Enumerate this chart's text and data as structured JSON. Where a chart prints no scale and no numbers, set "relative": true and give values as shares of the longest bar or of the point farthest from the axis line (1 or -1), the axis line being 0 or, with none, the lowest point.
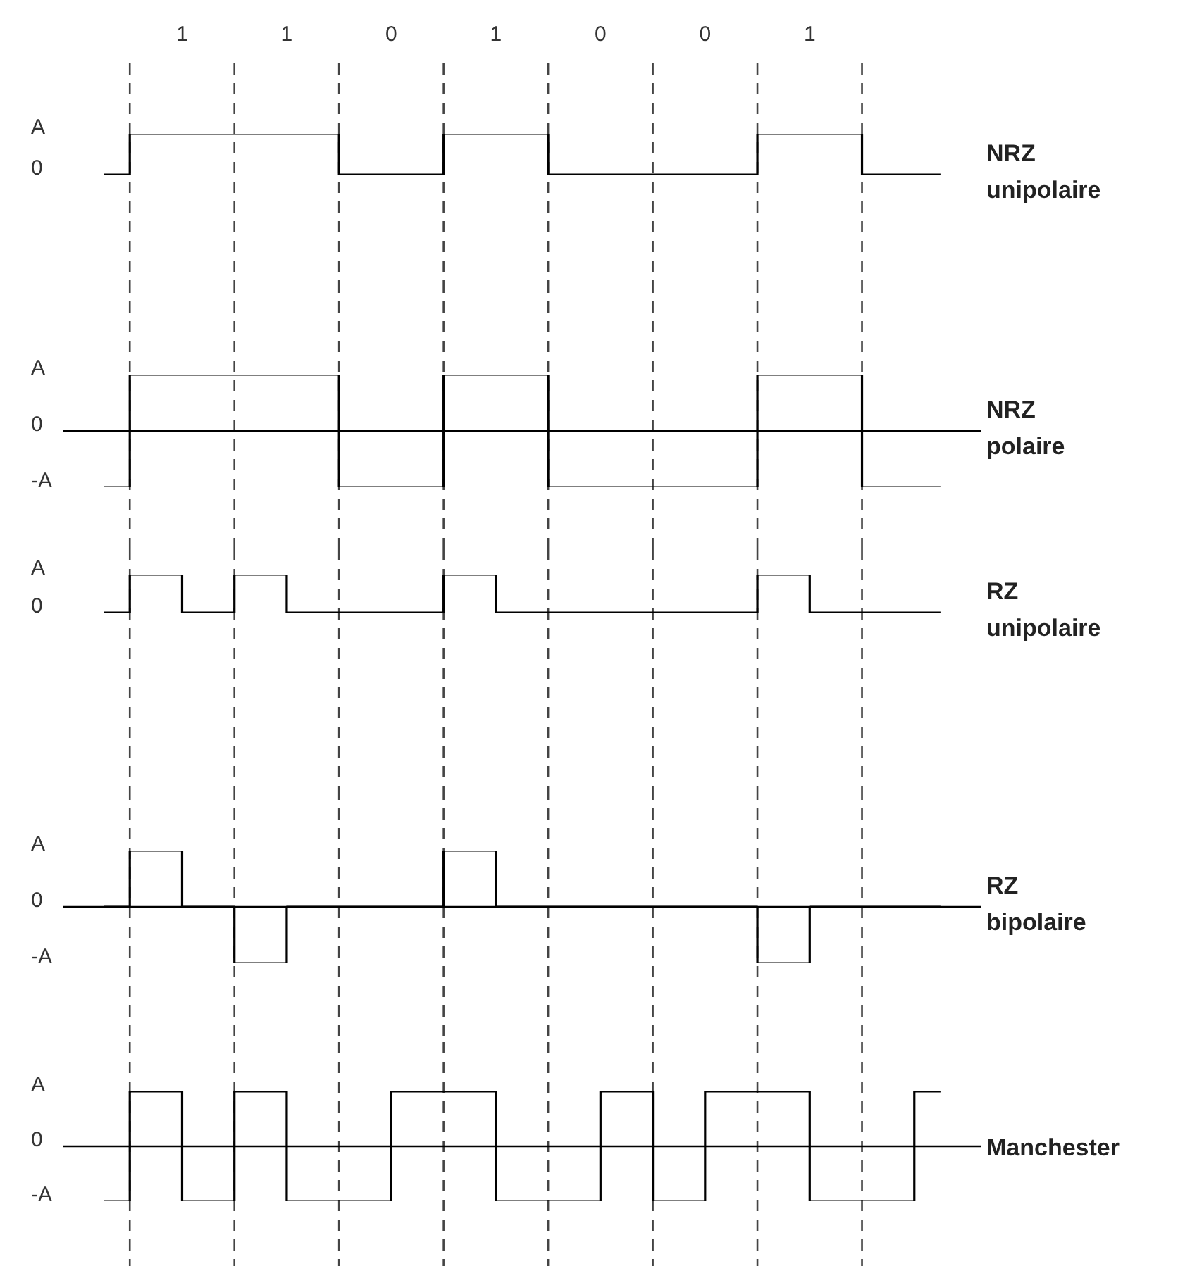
{
  "chart_data": [
    {
      "type": "step",
      "relative": true,
      "categories": [
        null,
        null,
        null,
        null,
        null,
        null,
        null,
        null,
        null,
        null,
        null,
        null,
        null,
        null,
        null,
        null,
        null
      ],
      "annotations": [
        "1",
        "1",
        "0",
        "1",
        "0",
        "0",
        "1",
        "A",
        "0"
      ],
      "grid": "x",
      "line_style": "solid",
      "series": [
        {
          "name": "NRZ unipolaire",
          "color": "#000000",
          "values": [
            0,
            1,
            1,
            1,
            1,
            0,
            0,
            1,
            1,
            0,
            0,
            0,
            0,
            1,
            1,
            0,
            0
          ]
        }
      ]
    },
    {
      "type": "step",
      "relative": true,
      "categories": [
        null,
        null,
        null,
        null,
        null,
        null,
        null,
        null,
        null,
        null,
        null,
        null,
        null,
        null,
        null,
        null,
        null
      ],
      "annotations": [
        "A",
        "0",
        "-A"
      ],
      "grid": "x",
      "line_style": "solid",
      "series": [
        {
          "name": "NRZ polaire",
          "color": "#000000",
          "values": [
            -1,
            1,
            1,
            1,
            1,
            -1,
            -1,
            1,
            1,
            -1,
            -1,
            -1,
            -1,
            1,
            1,
            -1,
            -1
          ]
        }
      ],
      "ref_lines": [
        {
          "axis": "y",
          "value": 0,
          "color": "#000000"
        }
      ]
    },
    {
      "type": "step",
      "relative": true,
      "categories": [
        null,
        null,
        null,
        null,
        null,
        null,
        null,
        null,
        null,
        null,
        null,
        null,
        null,
        null,
        null,
        null,
        null
      ],
      "annotations": [
        "A",
        "0"
      ],
      "grid": "x",
      "line_style": "solid",
      "series": [
        {
          "name": "RZ unipolaire",
          "color": "#000000",
          "values": [
            0,
            1,
            0,
            1,
            0,
            0,
            0,
            1,
            0,
            0,
            0,
            0,
            0,
            1,
            0,
            0,
            0
          ]
        }
      ]
    },
    {
      "type": "step",
      "relative": true,
      "categories": [
        null,
        null,
        null,
        null,
        null,
        null,
        null,
        null,
        null,
        null,
        null,
        null,
        null,
        null,
        null,
        null,
        null
      ],
      "annotations": [
        "A",
        "0",
        "-A"
      ],
      "grid": "x",
      "line_style": "solid",
      "series": [
        {
          "name": "RZ bipolaire",
          "color": "#000000",
          "values": [
            0,
            1,
            0,
            -1,
            0,
            0,
            0,
            1,
            0,
            0,
            0,
            0,
            0,
            -1,
            0,
            0,
            0
          ]
        }
      ],
      "ref_lines": [
        {
          "axis": "y",
          "value": 0,
          "color": "#000000"
        }
      ]
    },
    {
      "type": "step",
      "relative": true,
      "categories": [
        null,
        null,
        null,
        null,
        null,
        null,
        null,
        null,
        null,
        null,
        null,
        null,
        null,
        null,
        null,
        null,
        null
      ],
      "annotations": [
        "A",
        "0",
        "-A"
      ],
      "grid": "x",
      "line_style": "solid",
      "series": [
        {
          "name": "Manchester",
          "color": "#000000",
          "values": [
            -1,
            1,
            -1,
            1,
            -1,
            -1,
            1,
            1,
            -1,
            -1,
            1,
            -1,
            1,
            1,
            -1,
            -1,
            1
          ]
        }
      ],
      "ref_lines": [
        {
          "axis": "y",
          "value": 0,
          "color": "#000000"
        }
      ]
    }
  ]
}
